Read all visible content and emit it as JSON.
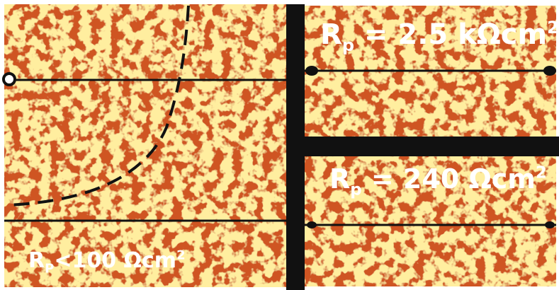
{
  "labels": [
    {
      "main": "R",
      "sub": "p",
      "rest": " = 2.5 kΩcm",
      "sup": "2"
    },
    {
      "main": "R",
      "sub": "p",
      "rest": " = 240 Ωcm",
      "sup": "2"
    },
    {
      "main": "R",
      "sub": "P",
      "rest": "<100 Ωcm",
      "sup": "2"
    }
  ]
}
